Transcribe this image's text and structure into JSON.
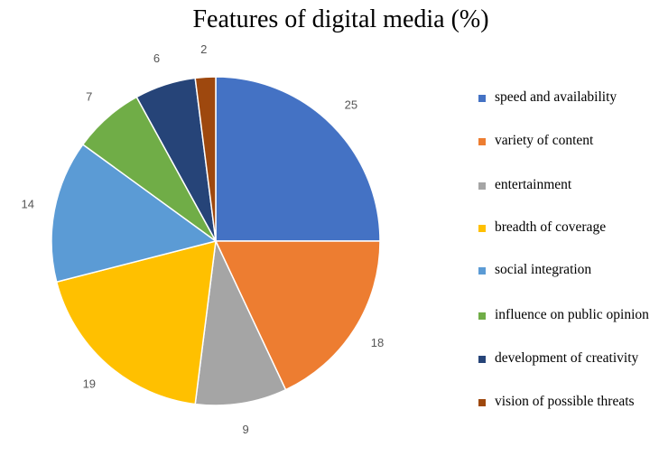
{
  "chart_data": {
    "type": "pie",
    "title": "Features of digital media (%)",
    "categories": [
      "speed and availability",
      "variety of content",
      "entertainment",
      "breadth of coverage",
      "social integration",
      "influence on public opinion",
      "development of creativity",
      "vision of possible threats"
    ],
    "values": [
      25,
      18,
      9,
      19,
      14,
      7,
      6,
      2
    ],
    "colors": [
      "#4472C4",
      "#ED7D31",
      "#A5A5A5",
      "#FFC000",
      "#5B9BD5",
      "#70AD47",
      "#264478",
      "#9E480E"
    ],
    "legend_position": "right"
  }
}
